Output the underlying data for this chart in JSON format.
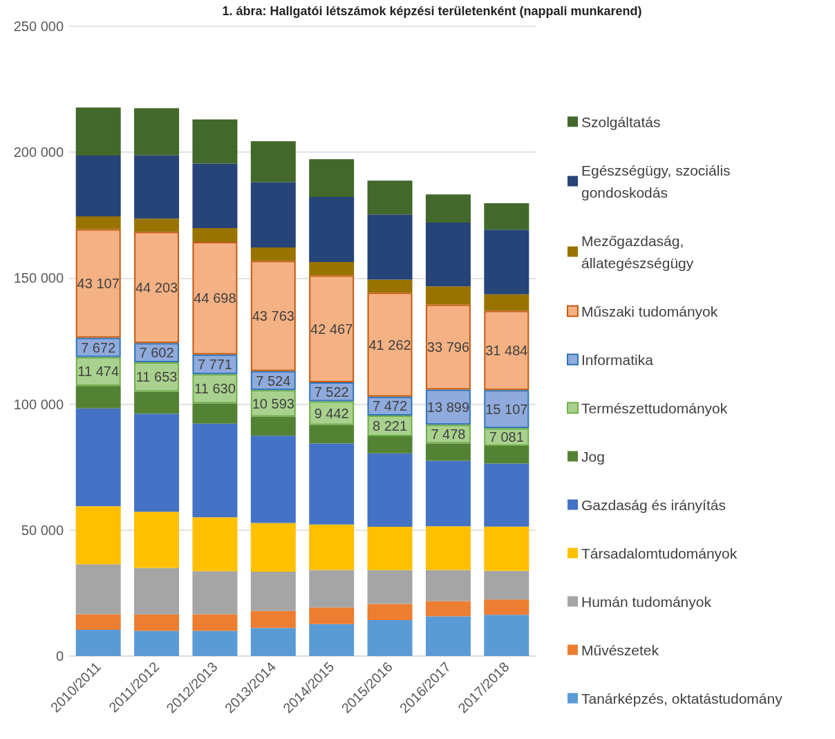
{
  "chart_data": {
    "type": "bar",
    "stacked": true,
    "title": "1. ábra: Hallgatói létszámok képzési területenként (nappali munkarend)",
    "categories": [
      "2010/2011",
      "2011/2012",
      "2012/2013",
      "2013/2014",
      "2014/2015",
      "2015/2016",
      "2016/2017",
      "2017/2018"
    ],
    "series": [
      {
        "name": "Tanárképzés, oktatástudomány",
        "color": "#5b9bd5",
        "values": [
          10400,
          10000,
          10000,
          11200,
          12700,
          14300,
          15800,
          16400
        ]
      },
      {
        "name": "Művészetek",
        "color": "#ed7d31",
        "values": [
          6200,
          6500,
          6600,
          6700,
          6600,
          6400,
          6000,
          6000
        ]
      },
      {
        "name": "Humán tudományok",
        "color": "#a5a5a5",
        "values": [
          19800,
          18500,
          17100,
          15600,
          14900,
          13400,
          12400,
          11400
        ]
      },
      {
        "name": "Társadalomtudományok",
        "color": "#ffc000",
        "values": [
          23100,
          22300,
          21400,
          19300,
          18000,
          17200,
          17300,
          17600
        ]
      },
      {
        "name": "Gazdaság és irányítás",
        "color": "#4472c4",
        "values": [
          38800,
          38900,
          37200,
          34700,
          32200,
          29200,
          26000,
          25000
        ]
      },
      {
        "name": "Jog",
        "color": "#548235",
        "values": [
          8900,
          8800,
          8000,
          7500,
          7300,
          6800,
          6900,
          7000
        ]
      },
      {
        "name": "Természettudományok",
        "color": "#a9d18e",
        "values": [
          11474,
          11653,
          11630,
          10593,
          9442,
          8221,
          7478,
          7081
        ],
        "value_labels": [
          "11 474",
          "11 653",
          "11 630",
          "10 593",
          "9 442",
          "8 221",
          "7 478",
          "7 081"
        ]
      },
      {
        "name": "Informatika",
        "color": "#8faadc",
        "values": [
          7672,
          7602,
          7771,
          7524,
          7522,
          7472,
          13899,
          15107
        ],
        "value_labels": [
          "7 672",
          "7 602",
          "7 771",
          "7 524",
          "7 522",
          "7 472",
          "13 899",
          "15 107"
        ]
      },
      {
        "name": "Műszaki tudományok",
        "color": "#f4b183",
        "values": [
          43107,
          44203,
          44698,
          43763,
          42467,
          41262,
          33796,
          31484
        ],
        "value_labels": [
          "43 107",
          "44 203",
          "44 698",
          "43 763",
          "42 467",
          "41 262",
          "33 796",
          "31 484"
        ]
      },
      {
        "name": "Mezőgazdaság, állategészségügy",
        "color": "#997300",
        "values": [
          5100,
          5200,
          5500,
          5300,
          5300,
          5200,
          7200,
          6500
        ]
      },
      {
        "name": "Egészségügy, szociális gondoskodás",
        "color": "#264478",
        "values": [
          24100,
          25100,
          25600,
          25900,
          25800,
          25800,
          25300,
          25700
        ]
      },
      {
        "name": "Szolgáltatás",
        "color": "#43682b",
        "values": [
          19100,
          18700,
          17500,
          16300,
          15000,
          13500,
          11200,
          10500
        ]
      }
    ],
    "ylim": [
      0,
      250000
    ],
    "yticks": [
      {
        "value": 0,
        "label": "0"
      },
      {
        "value": 50000,
        "label": "50 000"
      },
      {
        "value": 100000,
        "label": "100 000"
      },
      {
        "value": 150000,
        "label": "150 000"
      },
      {
        "value": 200000,
        "label": "200 000"
      },
      {
        "value": 250000,
        "label": "250 000"
      }
    ],
    "grid": "y",
    "legend": "right"
  }
}
